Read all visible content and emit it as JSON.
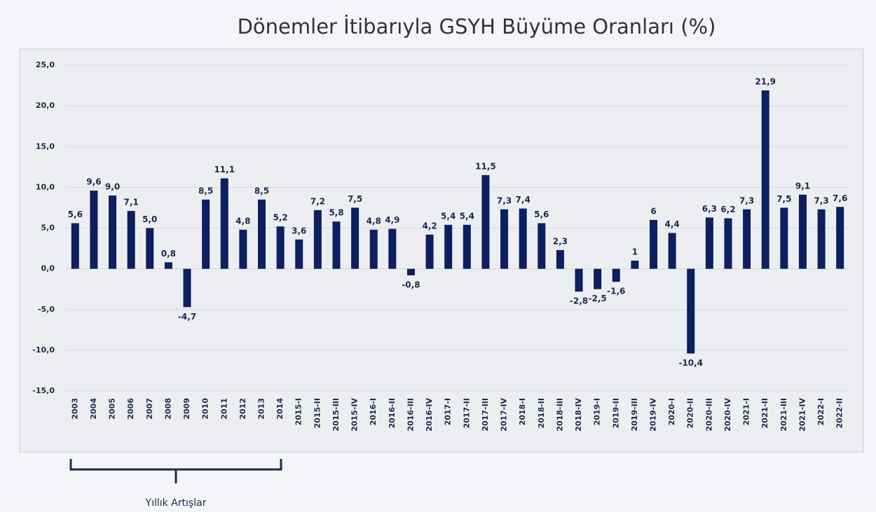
{
  "chart_data": {
    "type": "bar",
    "title": "Dönemler İtibarıyla GSYH Büyüme Oranları (%)",
    "categories": [
      "2003",
      "2004",
      "2005",
      "2006",
      "2007",
      "2008",
      "2009",
      "2010",
      "2011",
      "2012",
      "2013",
      "2014",
      "2015-I",
      "2015-II",
      "2015-III",
      "2015-IV",
      "2016-I",
      "2016-II",
      "2016-III",
      "2016-IV",
      "2017-I",
      "2017-II",
      "2017-III",
      "2017-IV",
      "2018-I",
      "2018-II",
      "2018-III",
      "2018-IV",
      "2019-I",
      "2019-II",
      "2019-III",
      "2019-IV",
      "2020-I",
      "2020-II",
      "2020-III",
      "2020-IV",
      "2021-I",
      "2021-II",
      "2021-III",
      "2021-IV",
      "2022-I",
      "2022-II"
    ],
    "values": [
      5.6,
      9.6,
      9.0,
      7.1,
      5.0,
      0.8,
      -4.7,
      8.5,
      11.1,
      4.8,
      8.5,
      5.2,
      3.6,
      7.2,
      5.8,
      7.5,
      4.8,
      4.9,
      -0.8,
      4.2,
      5.4,
      5.4,
      11.5,
      7.3,
      7.4,
      5.6,
      2.3,
      -2.8,
      -2.5,
      -1.6,
      1,
      6,
      4.4,
      -10.4,
      6.3,
      6.2,
      7.3,
      21.9,
      7.5,
      9.1,
      7.3,
      7.6
    ],
    "value_labels": [
      "5,6",
      "9,6",
      "9,0",
      "7,1",
      "5,0",
      "0,8",
      "-4,7",
      "8,5",
      "11,1",
      "4,8",
      "8,5",
      "5,2",
      "3,6",
      "7,2",
      "5,8",
      "7,5",
      "4,8",
      "4,9",
      "-0,8",
      "4,2",
      "5,4",
      "5,4",
      "11,5",
      "7,3",
      "7,4",
      "5,6",
      "2,3",
      "-2,8",
      "-2,5",
      "-1,6",
      "1",
      "6",
      "4,4",
      "-10,4",
      "6,3",
      "6,2",
      "7,3",
      "21,9",
      "7,5",
      "9,1",
      "7,3",
      "7,6"
    ],
    "color": "#0c1f5e",
    "ylim": [
      -15,
      25
    ],
    "yticks": [
      {
        "value": -15,
        "label": "-15,0"
      },
      {
        "value": -10,
        "label": "-10,0"
      },
      {
        "value": -5,
        "label": "-5,0"
      },
      {
        "value": 0,
        "label": "0,0"
      },
      {
        "value": 5,
        "label": "5,0"
      },
      {
        "value": 10,
        "label": "10,0"
      },
      {
        "value": 15,
        "label": "15,0"
      },
      {
        "value": 20,
        "label": "20,0"
      },
      {
        "value": 25,
        "label": "25,0"
      }
    ],
    "grid": true,
    "annotation": "Yıllık Artışlar"
  }
}
